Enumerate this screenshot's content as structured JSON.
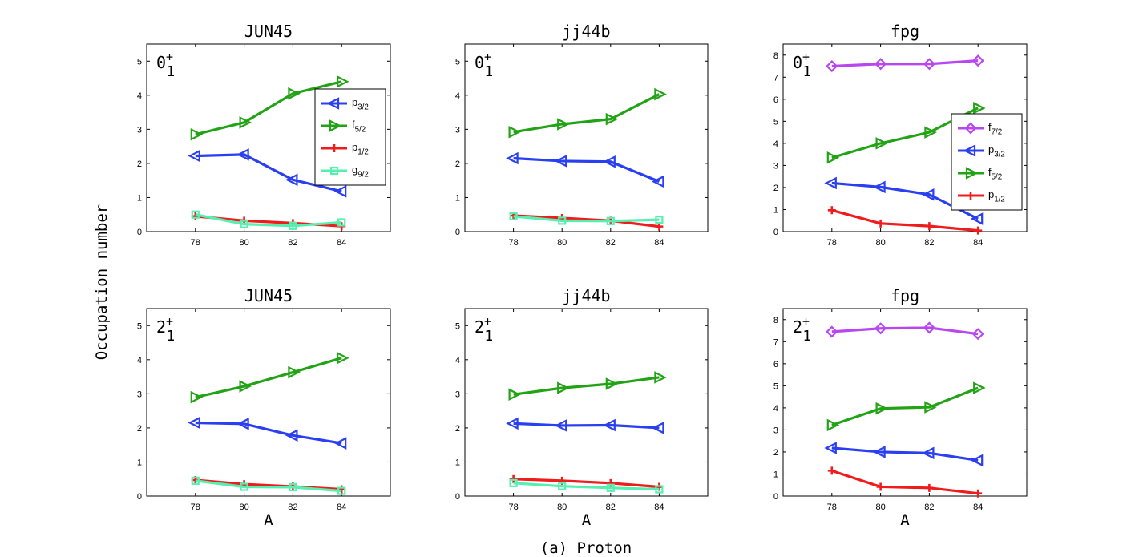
{
  "figure": {
    "ylabel": "Occupation number",
    "xlabel": "A",
    "caption": "(a) Proton"
  },
  "orbitals": {
    "f72": {
      "base": "f",
      "sub": "7/2",
      "color": "#b847f0",
      "marker": "diamond"
    },
    "p32": {
      "base": "p",
      "sub": "3/2",
      "color": "#2a3ff0",
      "marker": "tri-left"
    },
    "f52": {
      "base": "f",
      "sub": "5/2",
      "color": "#22a315",
      "marker": "tri-right"
    },
    "p12": {
      "base": "p",
      "sub": "1/2",
      "color": "#ee1c1c",
      "marker": "plus"
    },
    "g92": {
      "base": "g",
      "sub": "9/2",
      "color": "#55f0b0",
      "marker": "square"
    }
  },
  "chart_data": [
    {
      "type": "line",
      "title": "JUN45",
      "state": {
        "base": "0",
        "sup": "+",
        "sub": "1"
      },
      "x": [
        78,
        80,
        82,
        84
      ],
      "xlim": [
        76,
        86
      ],
      "ylim": [
        0,
        5.5
      ],
      "yticks": [
        0,
        1,
        2,
        3,
        4,
        5
      ],
      "xticks": [
        78,
        80,
        82,
        84
      ],
      "legend": [
        "p32",
        "f52",
        "p12",
        "g92"
      ],
      "legend_position": "right",
      "series": [
        {
          "key": "f52",
          "values": [
            2.85,
            3.2,
            4.05,
            4.4
          ]
        },
        {
          "key": "p32",
          "values": [
            2.22,
            2.26,
            1.52,
            1.18
          ]
        },
        {
          "key": "p12",
          "values": [
            0.45,
            0.32,
            0.25,
            0.16
          ]
        },
        {
          "key": "g92",
          "values": [
            0.5,
            0.22,
            0.17,
            0.27
          ]
        }
      ]
    },
    {
      "type": "line",
      "title": "jj44b",
      "state": {
        "base": "0",
        "sup": "+",
        "sub": "1"
      },
      "x": [
        78,
        80,
        82,
        84
      ],
      "xlim": [
        76,
        86
      ],
      "ylim": [
        0,
        5.5
      ],
      "yticks": [
        0,
        1,
        2,
        3,
        4,
        5
      ],
      "xticks": [
        78,
        80,
        82,
        84
      ],
      "legend": [],
      "series": [
        {
          "key": "f52",
          "values": [
            2.92,
            3.15,
            3.3,
            4.03
          ]
        },
        {
          "key": "p32",
          "values": [
            2.15,
            2.07,
            2.05,
            1.47
          ]
        },
        {
          "key": "p12",
          "values": [
            0.47,
            0.4,
            0.32,
            0.15
          ]
        },
        {
          "key": "g92",
          "values": [
            0.45,
            0.32,
            0.31,
            0.35
          ]
        }
      ]
    },
    {
      "type": "line",
      "title": "fpg",
      "state": {
        "base": "0",
        "sup": "+",
        "sub": "1"
      },
      "x": [
        78,
        80,
        82,
        84
      ],
      "xlim": [
        76,
        86
      ],
      "ylim": [
        0,
        8.5
      ],
      "yticks": [
        0,
        1,
        2,
        3,
        4,
        5,
        6,
        7,
        8
      ],
      "xticks": [
        78,
        80,
        82,
        84
      ],
      "legend": [
        "f72",
        "p32",
        "f52",
        "p12"
      ],
      "legend_position": "right",
      "series": [
        {
          "key": "f72",
          "values": [
            7.5,
            7.6,
            7.6,
            7.75
          ]
        },
        {
          "key": "f52",
          "values": [
            3.35,
            4.0,
            4.5,
            5.6
          ]
        },
        {
          "key": "p32",
          "values": [
            2.2,
            2.02,
            1.68,
            0.58
          ]
        },
        {
          "key": "p12",
          "values": [
            0.97,
            0.37,
            0.25,
            0.05
          ]
        }
      ]
    },
    {
      "type": "line",
      "title": "JUN45",
      "state": {
        "base": "2",
        "sup": "+",
        "sub": "1"
      },
      "x": [
        78,
        80,
        82,
        84
      ],
      "xlim": [
        76,
        86
      ],
      "ylim": [
        0,
        5.5
      ],
      "yticks": [
        0,
        1,
        2,
        3,
        4,
        5
      ],
      "xticks": [
        78,
        80,
        82,
        84
      ],
      "legend": [],
      "series": [
        {
          "key": "f52",
          "values": [
            2.9,
            3.22,
            3.63,
            4.05
          ]
        },
        {
          "key": "p32",
          "values": [
            2.15,
            2.12,
            1.78,
            1.55
          ]
        },
        {
          "key": "p12",
          "values": [
            0.47,
            0.35,
            0.28,
            0.2
          ]
        },
        {
          "key": "g92",
          "values": [
            0.45,
            0.27,
            0.26,
            0.15
          ]
        }
      ]
    },
    {
      "type": "line",
      "title": "jj44b",
      "state": {
        "base": "2",
        "sup": "+",
        "sub": "1"
      },
      "x": [
        78,
        80,
        82,
        84
      ],
      "xlim": [
        76,
        86
      ],
      "ylim": [
        0,
        5.5
      ],
      "yticks": [
        0,
        1,
        2,
        3,
        4,
        5
      ],
      "xticks": [
        78,
        80,
        82,
        84
      ],
      "legend": [],
      "series": [
        {
          "key": "f52",
          "values": [
            2.98,
            3.17,
            3.29,
            3.48
          ]
        },
        {
          "key": "p32",
          "values": [
            2.13,
            2.07,
            2.08,
            2.0
          ]
        },
        {
          "key": "p12",
          "values": [
            0.5,
            0.45,
            0.38,
            0.27
          ]
        },
        {
          "key": "g92",
          "values": [
            0.38,
            0.29,
            0.24,
            0.2
          ]
        }
      ]
    },
    {
      "type": "line",
      "title": "fpg",
      "state": {
        "base": "2",
        "sup": "+",
        "sub": "1"
      },
      "x": [
        78,
        80,
        82,
        84
      ],
      "xlim": [
        76,
        86
      ],
      "ylim": [
        0,
        8.5
      ],
      "yticks": [
        0,
        1,
        2,
        3,
        4,
        5,
        6,
        7,
        8
      ],
      "xticks": [
        78,
        80,
        82,
        84
      ],
      "legend": [],
      "series": [
        {
          "key": "f72",
          "values": [
            7.45,
            7.6,
            7.63,
            7.35
          ]
        },
        {
          "key": "f52",
          "values": [
            3.22,
            3.97,
            4.03,
            4.9
          ]
        },
        {
          "key": "p32",
          "values": [
            2.18,
            2.0,
            1.95,
            1.62
          ]
        },
        {
          "key": "p12",
          "values": [
            1.15,
            0.42,
            0.37,
            0.12
          ]
        }
      ]
    }
  ]
}
